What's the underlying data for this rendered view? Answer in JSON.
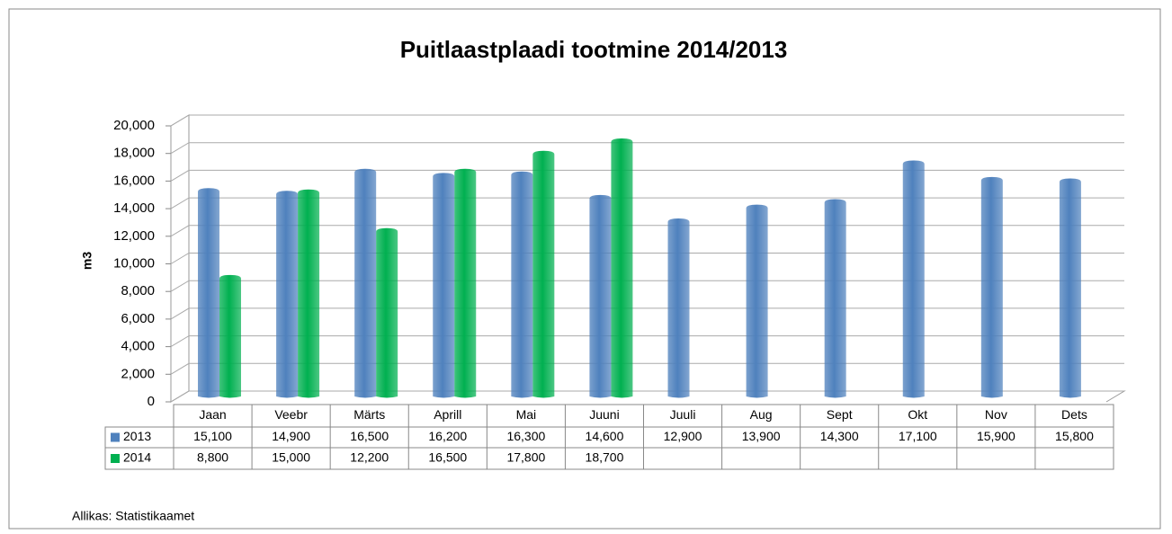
{
  "chart_data": {
    "type": "bar",
    "title": "Puitlaastplaadi tootmine 2014/2013",
    "y_label": "m3",
    "categories": [
      "Jaan",
      "Veebr",
      "Märts",
      "Aprill",
      "Mai",
      "Juuni",
      "Juuli",
      "Aug",
      "Sept",
      "Okt",
      "Nov",
      "Dets"
    ],
    "series": [
      {
        "name": "2013",
        "color": "#4f81bd",
        "values": [
          15100,
          14900,
          16500,
          16200,
          16300,
          14600,
          12900,
          13900,
          14300,
          17100,
          15900,
          15800
        ],
        "value_labels": [
          "15,100",
          "14,900",
          "16,500",
          "16,200",
          "16,300",
          "14,600",
          "12,900",
          "13,900",
          "14,300",
          "17,100",
          "15,900",
          "15,800"
        ]
      },
      {
        "name": "2014",
        "color": "#00b050",
        "values": [
          8800,
          15000,
          12200,
          16500,
          17800,
          18700,
          null,
          null,
          null,
          null,
          null,
          null
        ],
        "value_labels": [
          "8,800",
          "15,000",
          "12,200",
          "16,500",
          "17,800",
          "18,700",
          null,
          null,
          null,
          null,
          null,
          null
        ]
      }
    ],
    "ylim": [
      0,
      20000
    ],
    "yticks": [
      0,
      {
        "value": 2000,
        "label": "2,000"
      },
      {
        "value": 4000,
        "label": "4,000"
      },
      {
        "value": 6000,
        "label": "6,000"
      },
      {
        "value": 8000,
        "label": "8,000"
      },
      {
        "value": 10000,
        "label": "10,000"
      },
      {
        "value": 12000,
        "label": "12,000"
      },
      {
        "value": 14000,
        "label": "14,000"
      },
      {
        "value": 16000,
        "label": "16,000"
      },
      {
        "value": 18000,
        "label": "18,000"
      },
      {
        "value": 20000,
        "label": "20,000"
      }
    ],
    "grid": true,
    "data_table": true,
    "source": "Allikas: Statistikaamet"
  }
}
